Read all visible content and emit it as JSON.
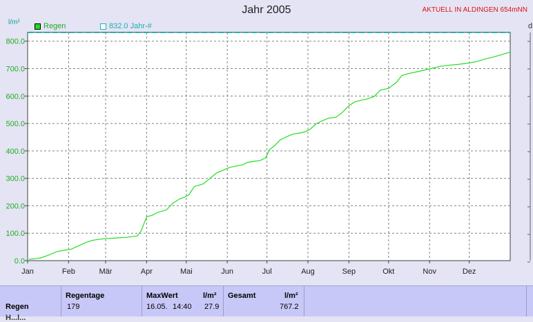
{
  "header": {
    "title": "Jahr 2005",
    "station": "AKTUELL IN ALDINGEN 654mNN",
    "right_label": "d"
  },
  "chart_data": {
    "type": "line",
    "ylabel": "l/m²",
    "ylim": [
      0,
      832
    ],
    "yticks": [
      "0.0",
      "100.0",
      "200.0",
      "300.0",
      "400.0",
      "500.0",
      "600.0",
      "700.0",
      "800.0"
    ],
    "ytick_values": [
      0,
      100,
      200,
      300,
      400,
      500,
      600,
      700,
      800
    ],
    "categories": [
      "Jan",
      "Feb",
      "Mär",
      "Apr",
      "Mai",
      "Jun",
      "Jul",
      "Aug",
      "Sep",
      "Okt",
      "Nov",
      "Dez"
    ],
    "grid": true,
    "legend_position": "top-left",
    "series": [
      {
        "name": "Regen",
        "color": "#22dd22",
        "x": [
          1,
          6,
          10,
          16,
          22,
          30,
          33,
          45,
          50,
          58,
          65,
          75,
          83,
          86,
          90,
          94,
          98,
          105,
          110,
          115,
          119,
          122,
          126,
          133,
          138,
          143,
          148,
          153,
          158,
          163,
          166,
          171,
          176,
          180,
          183,
          187,
          191,
          196,
          201,
          206,
          210,
          214,
          218,
          223,
          228,
          233,
          238,
          242,
          247,
          252,
          256,
          262,
          267,
          273,
          279,
          283,
          288,
          296,
          305,
          312,
          318,
          325,
          333,
          340,
          346,
          352,
          358,
          365
        ],
        "values": [
          5,
          7,
          10,
          20,
          33,
          40,
          42,
          68,
          75,
          80,
          82,
          85,
          90,
          110,
          160,
          165,
          175,
          185,
          210,
          225,
          232,
          240,
          270,
          280,
          300,
          320,
          330,
          340,
          345,
          350,
          358,
          362,
          365,
          375,
          405,
          420,
          440,
          452,
          462,
          465,
          470,
          480,
          498,
          510,
          520,
          522,
          540,
          560,
          578,
          585,
          588,
          598,
          622,
          628,
          650,
          675,
          682,
          690,
          700,
          708,
          712,
          715,
          720,
          726,
          735,
          742,
          750,
          760
        ]
      },
      {
        "name": "832.0 Jahr-#",
        "color": "#20b0b0",
        "style": "dashed",
        "x": [
          0,
          365
        ],
        "values": [
          832,
          832
        ]
      }
    ]
  },
  "table": {
    "row_label": "Regen",
    "row_label_cut": "H...l...",
    "regentage": {
      "header": "Regentage",
      "value": "179"
    },
    "maxwert": {
      "header": "MaxWert",
      "unit": "l/m²",
      "date": "16.05.",
      "time": "14:40",
      "value": "27.9"
    },
    "gesamt": {
      "header": "Gesamt",
      "unit": "l/m²",
      "value": "767.2"
    }
  }
}
